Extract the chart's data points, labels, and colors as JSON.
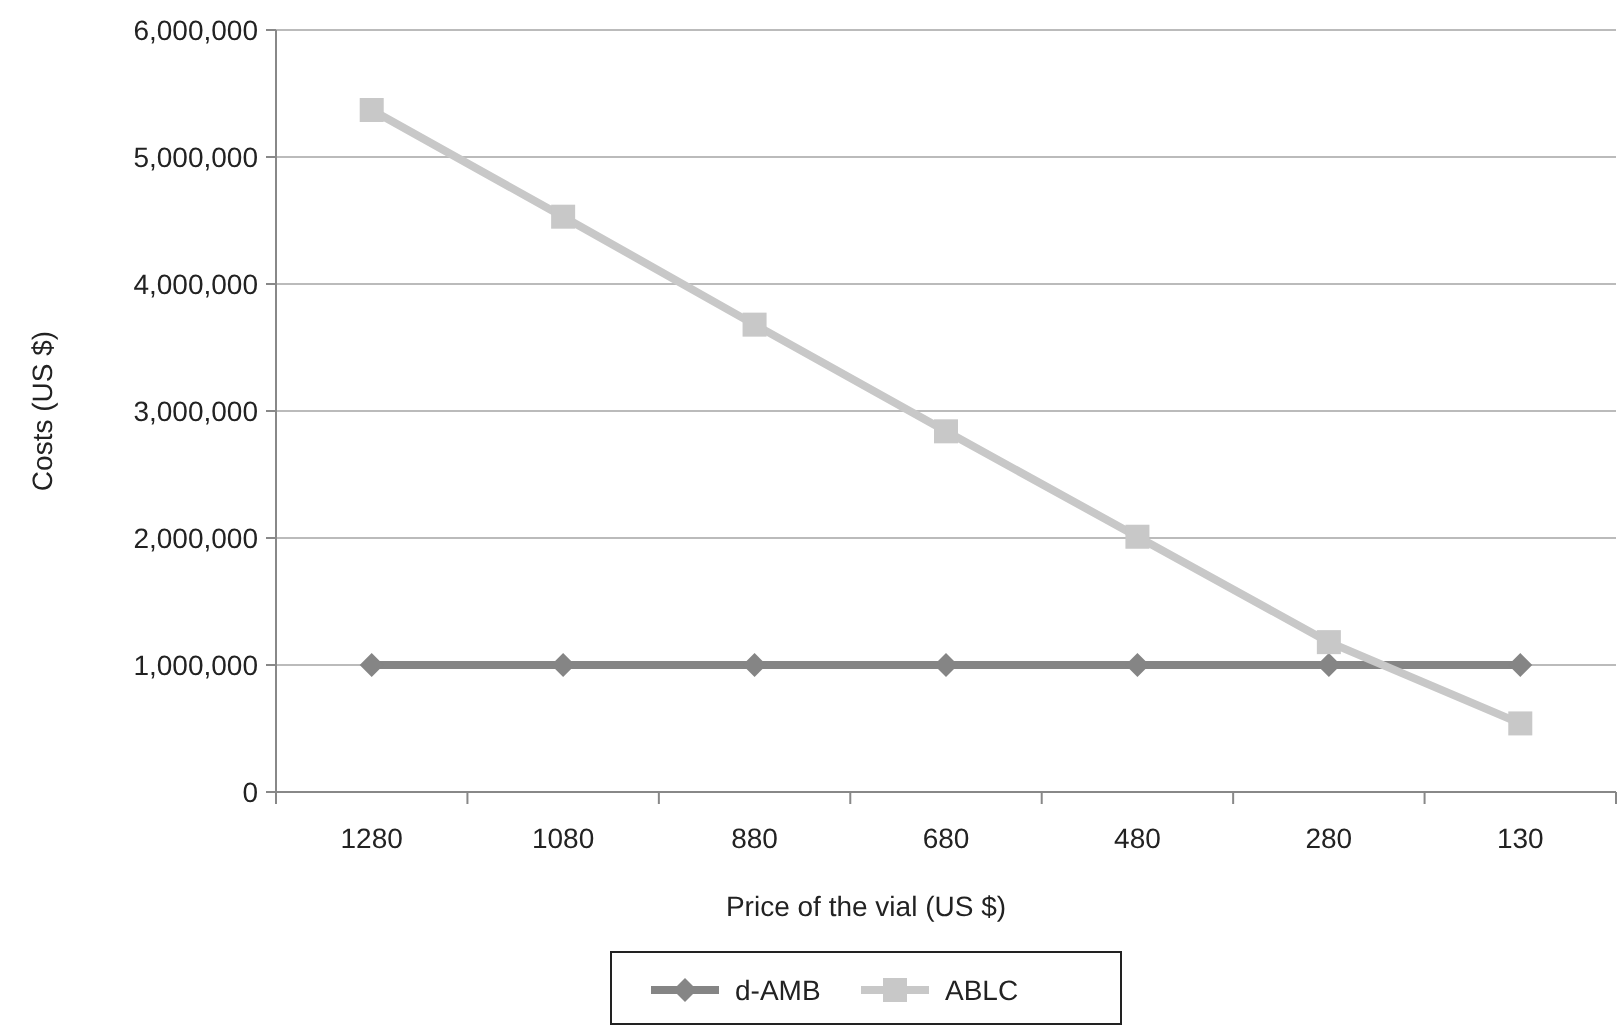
{
  "chart_data": {
    "type": "line",
    "xlabel": "Price of the vial (US $)",
    "ylabel": "Costs (US $)",
    "categories": [
      "1280",
      "1080",
      "880",
      "680",
      "480",
      "280",
      "130"
    ],
    "series": [
      {
        "name": "d-AMB",
        "color": "#858585",
        "marker": "diamond",
        "values": [
          1000000,
          1000000,
          1000000,
          1000000,
          1000000,
          1000000,
          1000000
        ]
      },
      {
        "name": "ABLC",
        "color": "#c8c8c8",
        "marker": "square",
        "values": [
          5370000,
          4530000,
          3680000,
          2840000,
          2010000,
          1180000,
          540000
        ]
      }
    ],
    "ylim": [
      0,
      6000000
    ],
    "yticks": [
      {
        "value": 0,
        "label": "0"
      },
      {
        "value": 1000000,
        "label": "1,000,000"
      },
      {
        "value": 2000000,
        "label": "2,000,000"
      },
      {
        "value": 3000000,
        "label": "3,000,000"
      },
      {
        "value": 4000000,
        "label": "4,000,000"
      },
      {
        "value": 5000000,
        "label": "5,000,000"
      },
      {
        "value": 6000000,
        "label": "6,000,000"
      }
    ],
    "grid": "y",
    "legend": "bottom"
  }
}
